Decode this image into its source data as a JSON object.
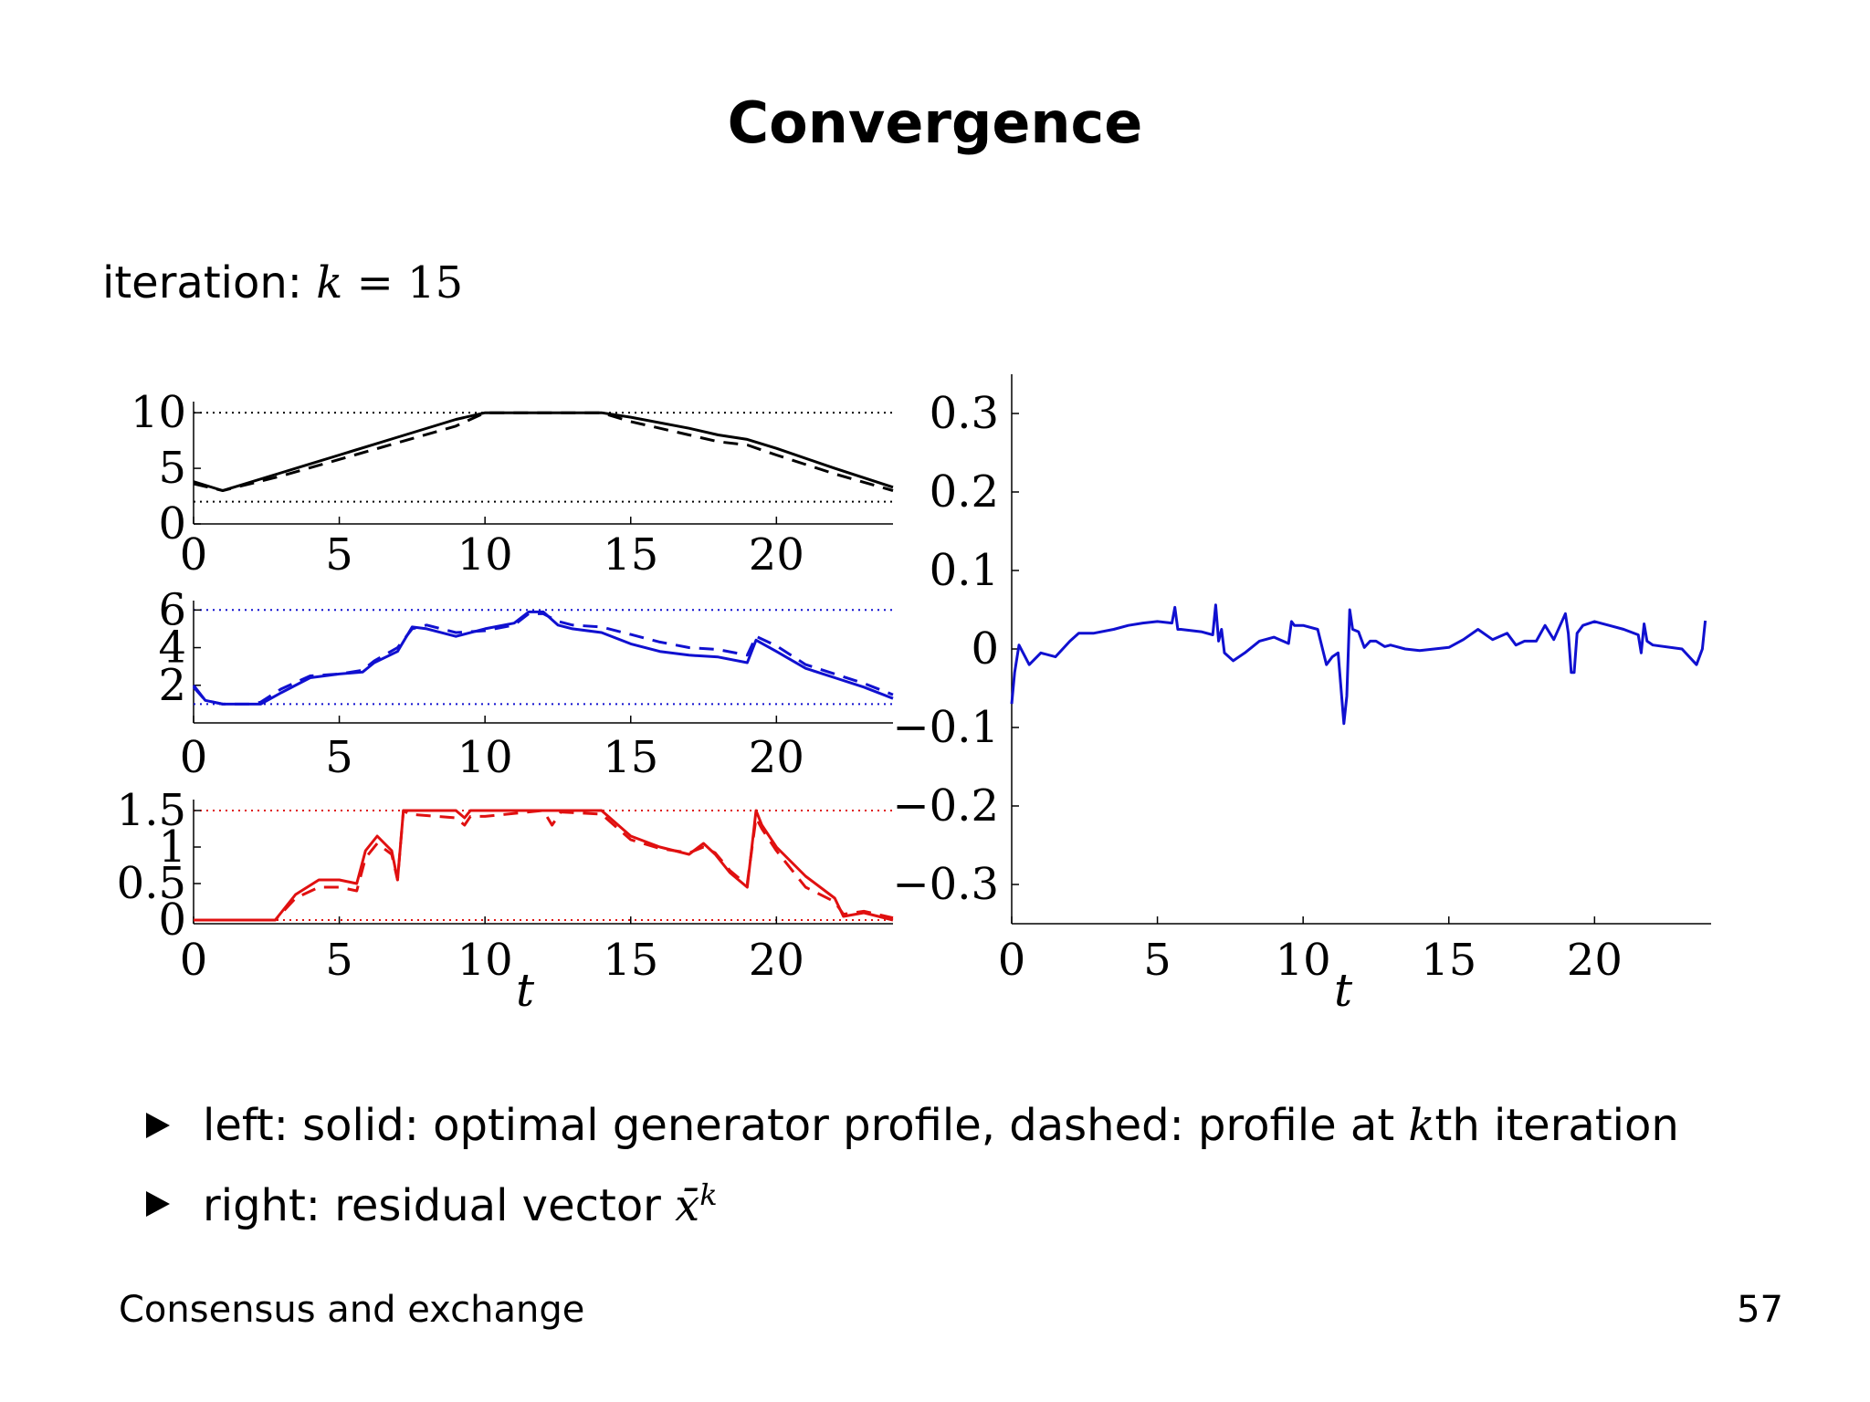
{
  "slide": {
    "title": "Convergence",
    "iteration_label": "iteration:",
    "iteration_var": "k",
    "iteration_eq": " = 15",
    "bullets": [
      {
        "pre": "left: solid: optimal generator profile, dashed: profile at ",
        "var": "k",
        "post": "th iteration"
      },
      {
        "pre": "right: residual vector ",
        "var": "x̄",
        "sup": "k"
      }
    ],
    "footer_left": "Consensus and exchange",
    "page_number": "57"
  },
  "colors": {
    "black": "#000000",
    "blue": "#1010d0",
    "red": "#e01010"
  },
  "chart_data": [
    {
      "type": "line",
      "color": "#000000",
      "xlim": [
        0,
        24
      ],
      "ylim": [
        0,
        11
      ],
      "xticks": [
        "0",
        "5",
        "10",
        "15",
        "20"
      ],
      "yticks": [
        "0",
        "5",
        "10"
      ],
      "bounds": [
        2,
        10
      ],
      "series": [
        {
          "style": "solid",
          "x": [
            0,
            1,
            3,
            5,
            7,
            9,
            10,
            14,
            15,
            17,
            18,
            19,
            20,
            22,
            24
          ],
          "y": [
            3.8,
            3.0,
            4.6,
            6.2,
            7.8,
            9.4,
            10,
            10,
            9.6,
            8.6,
            8.0,
            7.6,
            6.8,
            5.0,
            3.3
          ]
        },
        {
          "style": "dashed",
          "x": [
            0,
            1,
            3,
            5,
            7,
            9,
            10,
            14,
            15,
            17,
            18,
            19,
            20,
            22,
            24
          ],
          "y": [
            3.6,
            3.0,
            4.3,
            5.8,
            7.3,
            8.8,
            10,
            10,
            9.2,
            8.0,
            7.4,
            7.1,
            6.2,
            4.5,
            3.0
          ]
        }
      ]
    },
    {
      "type": "line",
      "color": "#1010d0",
      "xlim": [
        0,
        24
      ],
      "ylim": [
        0,
        6.5
      ],
      "xticks": [
        "0",
        "5",
        "10",
        "15",
        "20"
      ],
      "yticks": [
        "2",
        "4",
        "6"
      ],
      "bounds": [
        1,
        6
      ],
      "series": [
        {
          "style": "solid",
          "x": [
            0,
            0.4,
            1,
            2,
            2.3,
            3,
            4,
            5,
            5.8,
            6.2,
            7,
            7.5,
            8,
            9,
            10,
            11,
            11.5,
            12,
            12.5,
            13,
            14,
            15,
            16,
            17,
            18,
            19,
            19.3,
            20,
            21,
            22,
            23,
            24
          ],
          "y": [
            2.0,
            1.2,
            1.0,
            1.0,
            1.0,
            1.6,
            2.4,
            2.6,
            2.7,
            3.2,
            3.8,
            5.1,
            5.0,
            4.6,
            5.0,
            5.3,
            5.9,
            5.9,
            5.2,
            5.0,
            4.8,
            4.2,
            3.8,
            3.6,
            3.5,
            3.2,
            4.4,
            3.8,
            2.9,
            2.4,
            1.9,
            1.3
          ]
        },
        {
          "style": "dashed",
          "x": [
            0,
            0.4,
            1,
            2,
            2.3,
            3,
            4,
            5,
            5.8,
            6.2,
            7,
            7.5,
            8,
            9,
            10,
            11,
            11.5,
            12,
            12.5,
            13,
            14,
            15,
            16,
            17,
            18,
            19,
            19.3,
            20,
            21,
            22,
            23,
            24
          ],
          "y": [
            1.9,
            1.2,
            1.0,
            1.0,
            1.1,
            1.8,
            2.5,
            2.6,
            2.8,
            3.3,
            4.0,
            5.0,
            5.2,
            4.8,
            4.9,
            5.2,
            5.8,
            5.8,
            5.4,
            5.2,
            5.1,
            4.7,
            4.3,
            4.0,
            3.9,
            3.6,
            4.6,
            4.1,
            3.1,
            2.6,
            2.1,
            1.5
          ]
        }
      ]
    },
    {
      "type": "line",
      "color": "#e01010",
      "xlim": [
        0,
        24
      ],
      "ylim": [
        -0.05,
        1.65
      ],
      "xticks": [
        "0",
        "5",
        "10",
        "15",
        "20"
      ],
      "yticks": [
        "0",
        "0.5",
        "1",
        "1.5"
      ],
      "bounds": [
        0,
        1.5
      ],
      "xlabel": "t",
      "series": [
        {
          "style": "solid",
          "x": [
            0,
            2.8,
            3.5,
            4.3,
            5,
            5.6,
            5.9,
            6.3,
            6.8,
            7.0,
            7.2,
            7.4,
            9,
            9.3,
            9.5,
            10,
            14,
            15,
            16,
            17,
            17.5,
            17.9,
            18.4,
            18.7,
            19,
            19.3,
            19.5,
            20,
            21,
            22,
            22.3,
            23,
            24
          ],
          "y": [
            0,
            0,
            0.35,
            0.55,
            0.55,
            0.5,
            0.95,
            1.15,
            0.95,
            0.55,
            1.5,
            1.5,
            1.5,
            1.4,
            1.5,
            1.5,
            1.5,
            1.15,
            1.0,
            0.9,
            1.05,
            0.9,
            0.65,
            0.55,
            0.45,
            1.5,
            1.3,
            1.0,
            0.6,
            0.3,
            0.05,
            0.1,
            0.0
          ]
        },
        {
          "style": "dashed",
          "x": [
            0,
            2.8,
            3.5,
            4.3,
            5,
            5.6,
            5.9,
            6.3,
            6.8,
            7.0,
            7.2,
            7.4,
            9,
            9.3,
            9.5,
            10,
            12,
            12.3,
            12.6,
            14,
            15,
            16,
            17,
            17.5,
            17.9,
            18.4,
            18.7,
            19,
            19.3,
            19.5,
            20,
            21,
            22,
            22.3,
            23,
            24
          ],
          "y": [
            0,
            0,
            0.3,
            0.45,
            0.45,
            0.4,
            0.85,
            1.05,
            0.9,
            0.55,
            1.5,
            1.45,
            1.4,
            1.3,
            1.42,
            1.42,
            1.5,
            1.3,
            1.48,
            1.45,
            1.1,
            0.98,
            0.92,
            1.0,
            0.92,
            0.68,
            0.58,
            0.5,
            1.4,
            1.25,
            0.95,
            0.45,
            0.25,
            0.08,
            0.12,
            0.03
          ]
        }
      ]
    },
    {
      "type": "line",
      "color": "#1010d0",
      "xlim": [
        0,
        24
      ],
      "ylim": [
        -0.35,
        0.35
      ],
      "xticks": [
        "0",
        "5",
        "10",
        "15",
        "20"
      ],
      "yticks": [
        "−0.3",
        "−0.2",
        "−0.1",
        "0",
        "0.1",
        "0.2",
        "0.3"
      ],
      "xlabel": "t",
      "series": [
        {
          "style": "solid",
          "x": [
            0,
            0.1,
            0.25,
            0.6,
            1,
            1.5,
            2,
            2.3,
            2.8,
            3.5,
            4,
            4.5,
            5,
            5.5,
            5.6,
            5.7,
            5.8,
            6.5,
            6.9,
            7.0,
            7.1,
            7.2,
            7.3,
            7.6,
            8,
            8.5,
            9,
            9.5,
            9.6,
            9.7,
            10,
            10.5,
            10.8,
            11.0,
            11.2,
            11.4,
            11.5,
            11.6,
            11.7,
            11.9,
            12.1,
            12.3,
            12.5,
            12.8,
            13,
            13.5,
            14,
            14.5,
            15,
            15.5,
            16,
            16.5,
            17,
            17.3,
            17.6,
            18,
            18.3,
            18.6,
            19,
            19.1,
            19.2,
            19.3,
            19.4,
            19.5,
            19.6,
            20,
            20.5,
            21,
            21.5,
            21.6,
            21.7,
            21.8,
            22,
            23,
            23.5,
            23.7,
            23.8
          ],
          "y": [
            -0.07,
            -0.03,
            0.005,
            -0.02,
            -0.005,
            -0.01,
            0.01,
            0.02,
            0.02,
            0.025,
            0.03,
            0.033,
            0.035,
            0.033,
            0.053,
            0.025,
            0.025,
            0.022,
            0.018,
            0.056,
            0.01,
            0.025,
            -0.005,
            -0.015,
            -0.005,
            0.01,
            0.015,
            0.007,
            0.035,
            0.03,
            0.03,
            0.025,
            -0.02,
            -0.01,
            -0.005,
            -0.095,
            -0.06,
            0.05,
            0.025,
            0.022,
            0.002,
            0.01,
            0.01,
            0.003,
            0.005,
            0.0,
            -0.002,
            0.0,
            0.002,
            0.012,
            0.025,
            0.012,
            0.02,
            0.005,
            0.01,
            0.01,
            0.03,
            0.012,
            0.045,
            0.02,
            -0.03,
            -0.03,
            0.02,
            0.025,
            0.03,
            0.035,
            0.03,
            0.025,
            0.018,
            -0.005,
            0.032,
            0.01,
            0.005,
            0.0,
            -0.02,
            0.0,
            0.036
          ]
        }
      ]
    }
  ]
}
